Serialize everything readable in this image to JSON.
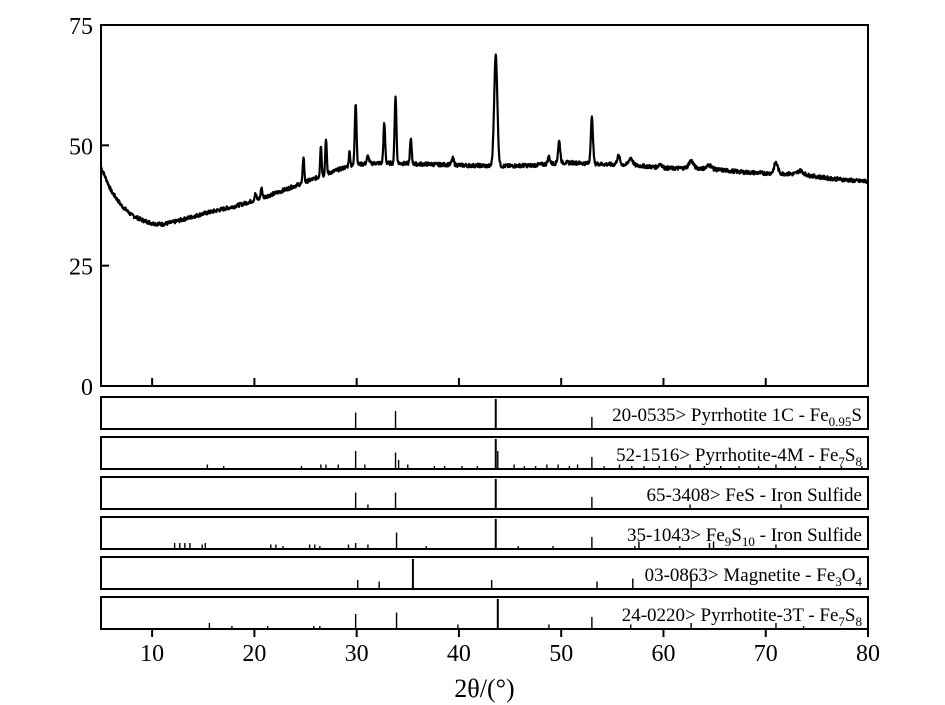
{
  "chart_data": {
    "type": "line",
    "xlabel": "2θ/(°)",
    "xlim": [
      5,
      80
    ],
    "ylim": [
      0,
      75
    ],
    "x_ticks": [
      10,
      20,
      30,
      40,
      50,
      60,
      70,
      80
    ],
    "y_ticks": [
      0,
      25,
      50,
      75
    ],
    "grid": false,
    "series": [
      {
        "name": "",
        "baseline": [
          [
            5,
            45.5
          ],
          [
            6,
            40.5
          ],
          [
            7,
            37.5
          ],
          [
            8,
            35.5
          ],
          [
            9,
            34.5
          ],
          [
            10,
            33.8
          ],
          [
            11,
            33.6
          ],
          [
            12,
            34
          ],
          [
            13,
            34.6
          ],
          [
            14,
            35.2
          ],
          [
            15,
            35.8
          ],
          [
            16,
            36.3
          ],
          [
            17,
            36.8
          ],
          [
            18,
            37.3
          ],
          [
            19,
            37.9
          ],
          [
            20,
            38.6
          ],
          [
            21,
            39.3
          ],
          [
            22,
            40
          ],
          [
            23,
            40.8
          ],
          [
            24,
            41.6
          ],
          [
            25,
            42.4
          ],
          [
            26,
            43.2
          ],
          [
            27,
            44
          ],
          [
            28,
            44.8
          ],
          [
            29,
            45.5
          ],
          [
            30,
            46
          ],
          [
            31,
            46.2
          ],
          [
            32,
            46.3
          ],
          [
            33,
            46.3
          ],
          [
            34,
            46.3
          ],
          [
            35,
            46.2
          ],
          [
            36,
            46.1
          ],
          [
            37,
            46.1
          ],
          [
            38,
            46
          ],
          [
            39,
            46
          ],
          [
            40,
            45.9
          ],
          [
            41,
            45.8
          ],
          [
            42,
            45.8
          ],
          [
            43,
            45.7
          ],
          [
            44,
            45.7
          ],
          [
            45,
            45.7
          ],
          [
            46,
            45.8
          ],
          [
            47,
            45.8
          ],
          [
            48,
            46
          ],
          [
            49,
            46.2
          ],
          [
            50,
            46.4
          ],
          [
            51,
            46.4
          ],
          [
            52,
            46.3
          ],
          [
            53,
            46.2
          ],
          [
            54,
            46.1
          ],
          [
            55,
            46
          ],
          [
            56,
            46
          ],
          [
            57,
            45.9
          ],
          [
            58,
            45.7
          ],
          [
            59,
            45.5
          ],
          [
            60,
            45.3
          ],
          [
            61,
            45.2
          ],
          [
            62,
            45.3
          ],
          [
            63,
            45.3
          ],
          [
            64,
            45.2
          ],
          [
            65,
            45
          ],
          [
            66,
            44.8
          ],
          [
            67,
            44.6
          ],
          [
            68,
            44.4
          ],
          [
            69,
            44.3
          ],
          [
            70,
            44.2
          ],
          [
            71,
            44.2
          ],
          [
            72,
            44.1
          ],
          [
            73,
            44
          ],
          [
            74,
            43.8
          ],
          [
            75,
            43.5
          ],
          [
            76,
            43.2
          ],
          [
            77,
            43
          ],
          [
            78,
            42.8
          ],
          [
            79,
            42.6
          ],
          [
            80,
            42.5
          ]
        ],
        "peaks": [
          [
            20.1,
            1.2,
            0.12
          ],
          [
            20.7,
            2.2,
            0.1
          ],
          [
            24.8,
            5.5,
            0.1
          ],
          [
            26.5,
            6.5,
            0.1
          ],
          [
            27.0,
            7.5,
            0.1
          ],
          [
            29.3,
            3,
            0.1
          ],
          [
            29.9,
            13,
            0.12
          ],
          [
            31.1,
            1.5,
            0.15
          ],
          [
            32.7,
            8.2,
            0.12
          ],
          [
            33.8,
            14,
            0.12
          ],
          [
            35.3,
            5,
            0.12
          ],
          [
            39.4,
            1.3,
            0.15
          ],
          [
            43.6,
            23,
            0.22
          ],
          [
            48.8,
            1.5,
            0.15
          ],
          [
            49.8,
            4.5,
            0.15
          ],
          [
            53.0,
            9.5,
            0.15
          ],
          [
            55.6,
            1.8,
            0.2
          ],
          [
            56.8,
            1.5,
            0.25
          ],
          [
            59.7,
            0.8,
            0.25
          ],
          [
            62.7,
            1.5,
            0.3
          ],
          [
            64.5,
            0.8,
            0.3
          ],
          [
            71.0,
            2.2,
            0.25
          ],
          [
            73.4,
            0.8,
            0.4
          ]
        ]
      }
    ],
    "reference_patterns": [
      {
        "label_main": "20-0535> Pyrrhotite 1C - Fe",
        "label_sub": "0.95",
        "label_tail": "S",
        "peaks": [
          [
            29.9,
            0.55
          ],
          [
            33.8,
            0.6
          ],
          [
            43.6,
            1.0
          ],
          [
            53.0,
            0.4
          ]
        ]
      },
      {
        "label_main": "52-1516> Pyrrhotite-4M - Fe",
        "label_sub": "7",
        "label_tail": "S",
        "label_sub2": "8",
        "peaks": [
          [
            15.4,
            0.15
          ],
          [
            17.0,
            0.1
          ],
          [
            24.6,
            0.1
          ],
          [
            26.5,
            0.15
          ],
          [
            27.0,
            0.15
          ],
          [
            28.2,
            0.15
          ],
          [
            29.9,
            0.6
          ],
          [
            30.8,
            0.15
          ],
          [
            33.8,
            0.55
          ],
          [
            34.1,
            0.3
          ],
          [
            35.0,
            0.15
          ],
          [
            37.6,
            0.1
          ],
          [
            38.6,
            0.1
          ],
          [
            40.3,
            0.1
          ],
          [
            41.8,
            0.1
          ],
          [
            43.6,
            1.0
          ],
          [
            43.8,
            0.6
          ],
          [
            45.4,
            0.15
          ],
          [
            46.4,
            0.1
          ],
          [
            47.5,
            0.1
          ],
          [
            48.6,
            0.15
          ],
          [
            49.7,
            0.15
          ],
          [
            50.8,
            0.1
          ],
          [
            51.6,
            0.15
          ],
          [
            53.0,
            0.4
          ],
          [
            54.2,
            0.1
          ],
          [
            55.7,
            0.15
          ],
          [
            56.9,
            0.1
          ],
          [
            58.1,
            0.1
          ],
          [
            59.6,
            0.1
          ],
          [
            61.2,
            0.1
          ],
          [
            62.6,
            0.15
          ],
          [
            64.0,
            0.1
          ],
          [
            65.6,
            0.1
          ],
          [
            67.4,
            0.1
          ],
          [
            69.3,
            0.1
          ],
          [
            71.0,
            0.15
          ],
          [
            72.9,
            0.1
          ],
          [
            75.3,
            0.1
          ],
          [
            77.4,
            0.1
          ],
          [
            79.4,
            0.1
          ]
        ]
      },
      {
        "label_main": "65-3408> FeS - Iron Sulfide",
        "peaks": [
          [
            29.9,
            0.55
          ],
          [
            31.1,
            0.15
          ],
          [
            33.8,
            0.55
          ],
          [
            43.6,
            1.0
          ],
          [
            53.0,
            0.4
          ],
          [
            62.6,
            0.15
          ],
          [
            71.5,
            0.15
          ]
        ]
      },
      {
        "label_main": "35-1043> Fe",
        "label_sub": "9",
        "label_tail": "S",
        "label_sub2": "10",
        "label_end": " - Iron Sulfide",
        "peaks": [
          [
            12.2,
            0.2
          ],
          [
            12.7,
            0.2
          ],
          [
            13.2,
            0.2
          ],
          [
            13.7,
            0.2
          ],
          [
            14.9,
            0.15
          ],
          [
            15.2,
            0.2
          ],
          [
            21.6,
            0.15
          ],
          [
            22.1,
            0.15
          ],
          [
            22.8,
            0.1
          ],
          [
            25.4,
            0.15
          ],
          [
            25.9,
            0.15
          ],
          [
            26.4,
            0.1
          ],
          [
            29.2,
            0.15
          ],
          [
            29.9,
            0.2
          ],
          [
            31.1,
            0.15
          ],
          [
            33.9,
            0.55
          ],
          [
            36.8,
            0.1
          ],
          [
            43.6,
            1.0
          ],
          [
            45.8,
            0.1
          ],
          [
            49.2,
            0.1
          ],
          [
            53.0,
            0.4
          ],
          [
            57.2,
            0.1
          ],
          [
            57.6,
            0.25
          ],
          [
            61.6,
            0.1
          ],
          [
            64.5,
            0.2
          ],
          [
            64.9,
            0.25
          ],
          [
            71.0,
            0.15
          ]
        ]
      },
      {
        "label_main": "03-0863> Magnetite - Fe",
        "label_sub": "3",
        "label_tail": "O",
        "label_sub2": "4",
        "peaks": [
          [
            30.1,
            0.3
          ],
          [
            32.2,
            0.25
          ],
          [
            35.5,
            1.0
          ],
          [
            43.2,
            0.3
          ],
          [
            53.5,
            0.25
          ],
          [
            57.0,
            0.35
          ],
          [
            62.7,
            0.45
          ]
        ]
      },
      {
        "label_main": "24-0220> Pyrrhotite-3T - Fe",
        "label_sub": "7",
        "label_tail": "S",
        "label_sub2": "8",
        "peaks": [
          [
            15.6,
            0.2
          ],
          [
            17.8,
            0.1
          ],
          [
            21.3,
            0.1
          ],
          [
            25.8,
            0.1
          ],
          [
            26.4,
            0.1
          ],
          [
            29.9,
            0.5
          ],
          [
            33.9,
            0.55
          ],
          [
            39.9,
            0.15
          ],
          [
            43.8,
            1.0
          ],
          [
            48.8,
            0.15
          ],
          [
            53.0,
            0.4
          ],
          [
            56.8,
            0.15
          ],
          [
            62.7,
            0.2
          ],
          [
            71.0,
            0.2
          ],
          [
            73.7,
            0.1
          ]
        ]
      }
    ]
  }
}
